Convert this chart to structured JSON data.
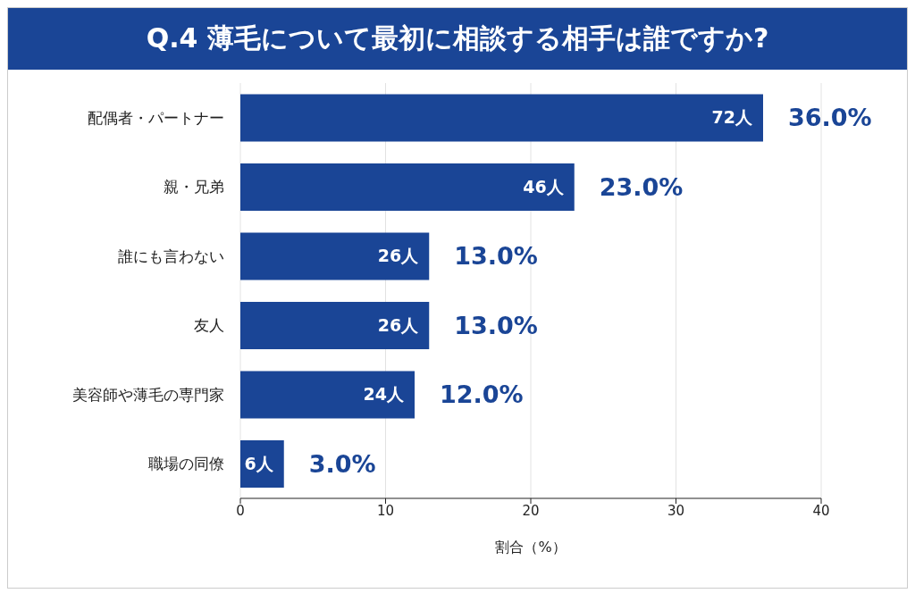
{
  "chart_data": {
    "type": "bar",
    "orientation": "horizontal",
    "title": "Q.4 薄毛について最初に相談する相手は誰ですか?",
    "xlabel": "割合（%）",
    "categories": [
      "配偶者・パートナー",
      "親・兄弟",
      "誰にも言わない",
      "友人",
      "美容師や薄毛の専門家",
      "職場の同僚"
    ],
    "values": [
      36.0,
      23.0,
      13.0,
      13.0,
      12.0,
      3.0
    ],
    "value_labels": [
      "36.0%",
      "23.0%",
      "13.0%",
      "13.0%",
      "12.0%",
      "3.0%"
    ],
    "color": "#1a4596",
    "annotations": [
      {
        "text": "72人",
        "x": 36.0,
        "y": "配偶者・パートナー"
      },
      {
        "text": "46人",
        "x": 23.0,
        "y": "親・兄弟"
      },
      {
        "text": "26人",
        "x": 13.0,
        "y": "誰にも言わない"
      },
      {
        "text": "26人",
        "x": 13.0,
        "y": "友人"
      },
      {
        "text": "24人",
        "x": 12.0,
        "y": "美容師や薄毛の専門家"
      },
      {
        "text": "6人",
        "x": 3.0,
        "y": "職場の同僚"
      }
    ],
    "xlim": [
      0,
      40
    ],
    "xticks": [
      0,
      10,
      20,
      30,
      40
    ],
    "grid": "x",
    "legend": false
  }
}
